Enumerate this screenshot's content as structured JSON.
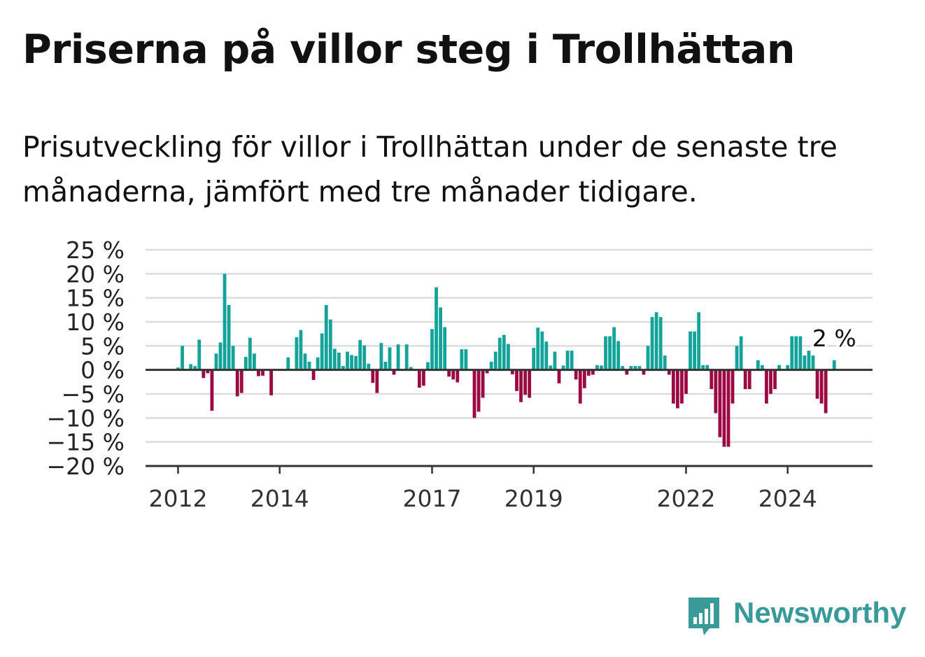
{
  "title": "Priserna på villor steg i Trollhättan",
  "subtitle": "Prisutveckling för villor i Trollhättan under de senaste tre månaderna, jämfört med tre månader tidigare.",
  "brand": {
    "name": "Newsworthy",
    "color": "#3a9a9a",
    "icon": "newsworthy-logo-icon"
  },
  "colors": {
    "positive": "#14a39a",
    "negative": "#9c0a44",
    "grid": "#dcdcdc",
    "axis": "#333333"
  },
  "chart_data": {
    "type": "bar",
    "unit": "%",
    "ylim": [
      -20,
      25
    ],
    "yticks": [
      25,
      20,
      15,
      10,
      5,
      0,
      -5,
      -10,
      -15,
      -20
    ],
    "ytick_labels": [
      "25 %",
      "20 %",
      "15 %",
      "10 %",
      "5 %",
      "0 %",
      "−5 %",
      "−10 %",
      "−15 %",
      "−20 %"
    ],
    "x_start": "2012-01",
    "xticks": [
      "2012",
      "2014",
      "2017",
      "2019",
      "2022",
      "2024"
    ],
    "grid": true,
    "annotation": "2 %",
    "values": [
      0.5,
      5,
      0,
      1.2,
      0.8,
      6.3,
      -1.7,
      -0.7,
      -8.5,
      3.4,
      5.7,
      20,
      13.5,
      5,
      -5.5,
      -4.8,
      2.7,
      6.7,
      3.4,
      -1.3,
      -1.2,
      0,
      -5.3,
      0,
      0,
      0,
      2.6,
      0,
      6.8,
      8.3,
      3.4,
      1.7,
      -2.1,
      2.6,
      7.6,
      13.5,
      10.5,
      4.4,
      3.6,
      0.8,
      3.8,
      3.1,
      2.9,
      6.2,
      5.1,
      1.3,
      -2.7,
      -4.8,
      5.6,
      1.7,
      4.7,
      -1,
      5.3,
      0,
      5.3,
      0.6,
      0,
      -3.7,
      -3.3,
      1.6,
      8.5,
      17.2,
      13,
      8.9,
      -1.4,
      -2,
      -2.6,
      4.3,
      4.3,
      0,
      -10,
      -8.7,
      -5.8,
      -0.7,
      1.7,
      3.8,
      6.7,
      7.3,
      5.4,
      -0.9,
      -4.4,
      -6.7,
      -5.2,
      -5.8,
      4.6,
      8.8,
      8,
      5.9,
      0.9,
      3.8,
      -2.8,
      0.9,
      4,
      4,
      -2,
      -7,
      -3.8,
      -1.2,
      -1,
      1,
      0.9,
      7,
      7,
      8.9,
      6,
      0.8,
      -1,
      0.8,
      0.8,
      0.8,
      -1,
      5,
      11,
      12,
      11,
      3,
      -1,
      -7,
      -8,
      -7,
      -5,
      8,
      8,
      12,
      1,
      1,
      -4,
      -9,
      -14,
      -16,
      -16,
      -7,
      5,
      7,
      -4,
      -4,
      0,
      2,
      1,
      -7,
      -5,
      -4,
      1,
      0,
      1,
      7,
      7,
      7,
      3,
      4,
      3,
      -6,
      -7,
      -9,
      0,
      2
    ]
  }
}
